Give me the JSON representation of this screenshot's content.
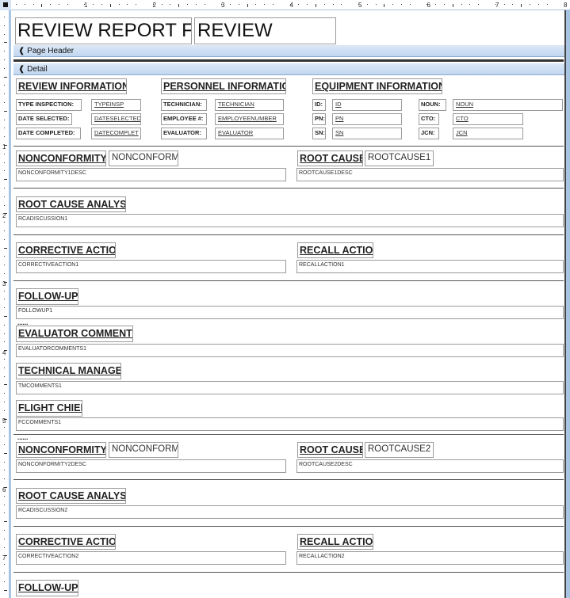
{
  "ruler": {
    "marks": [
      "1",
      "2",
      "3",
      "4",
      "5",
      "6",
      "7",
      "8"
    ],
    "vmarks": [
      "1",
      "2",
      "3",
      "4",
      "5",
      "6",
      "7"
    ]
  },
  "report_header": {
    "title_label": "REVIEW REPORT FOR:",
    "title_value": "REVIEW"
  },
  "sections": {
    "page_header": "Page Header",
    "detail": "Detail"
  },
  "review_info": {
    "heading": "REVIEW INFORMATION:",
    "fields": [
      {
        "label": "TYPE INSPECTION:",
        "value": "TYPEINSP"
      },
      {
        "label": "DATE SELECTED:",
        "value": "DATESELECTED"
      },
      {
        "label": "DATE COMPLETED:",
        "value": "DATECOMPLET"
      }
    ]
  },
  "personnel_info": {
    "heading": "PERSONNEL INFORMATION:",
    "fields": [
      {
        "label": "TECHNICIAN:",
        "value": "TECHNICIAN"
      },
      {
        "label": "EMPLOYEE #:",
        "value": "EMPLOYEENUMBER"
      },
      {
        "label": "EVALUATOR:",
        "value": "EVALUATOR"
      }
    ]
  },
  "equipment_info": {
    "heading": "EQUIPMENT INFORMATION:",
    "fields": [
      {
        "label": "ID:",
        "value": "ID"
      },
      {
        "label": "PN:",
        "value": "PN"
      },
      {
        "label": "SN:",
        "value": "SN"
      },
      {
        "label": "NOUN:",
        "value": "NOUN"
      },
      {
        "label": "CTO:",
        "value": "CTO"
      },
      {
        "label": "JCN:",
        "value": "JCN"
      }
    ]
  },
  "groups": [
    {
      "nonconformity_label": "NONCONFORMITY:",
      "nonconformity_value": "NONCONFORM",
      "nonconformity_desc": "NONCONFORMITY1DESC",
      "root_cause_label": "ROOT CAUSE:",
      "root_cause_value": "ROOTCAUSE1",
      "root_cause_desc": "ROOTCAUSE1DESC",
      "rca_label": "ROOT CAUSE ANALYSIS:",
      "rca_value": "RCADISCUSSION1",
      "corrective_label": "CORRECTIVE ACTION:",
      "corrective_value": "CORRECTIVEACTION1",
      "recall_label": "RECALL ACTION:",
      "recall_value": "RECALLACTION1",
      "followup_label": "FOLLOW-UP:",
      "followup_value": "FOLLOWUP1"
    },
    {
      "nonconformity_label": "NONCONFORMITY:",
      "nonconformity_value": "NONCONFORM",
      "nonconformity_desc": "NONCONFORMITY2DESC",
      "root_cause_label": "ROOT CAUSE:",
      "root_cause_value": "ROOTCAUSE2",
      "root_cause_desc": "ROOTCAUSE2DESC",
      "rca_label": "ROOT CAUSE ANALYSIS:",
      "rca_value": "RCADISCUSSION2",
      "corrective_label": "CORRECTIVE ACTION:",
      "corrective_value": "CORRECTIVEACTION2",
      "recall_label": "RECALL ACTION:",
      "recall_value": "RECALLACTION2",
      "followup_label": "FOLLOW-UP:"
    }
  ],
  "comments": {
    "page_break": "......",
    "evaluator_label": "EVALUATOR COMMENTS:",
    "evaluator_value": "EVALUATORCOMMENTS1",
    "tm_label": "TECHNICAL MANAGER:",
    "tm_value": "TMCOMMENTS1",
    "fc_label": "FLIGHT CHIEF:",
    "fc_value": "FCCOMMENTS1"
  },
  "colors": {
    "section_bar": "#c2d7f0",
    "ruler_accent": "#a9c3e3"
  }
}
